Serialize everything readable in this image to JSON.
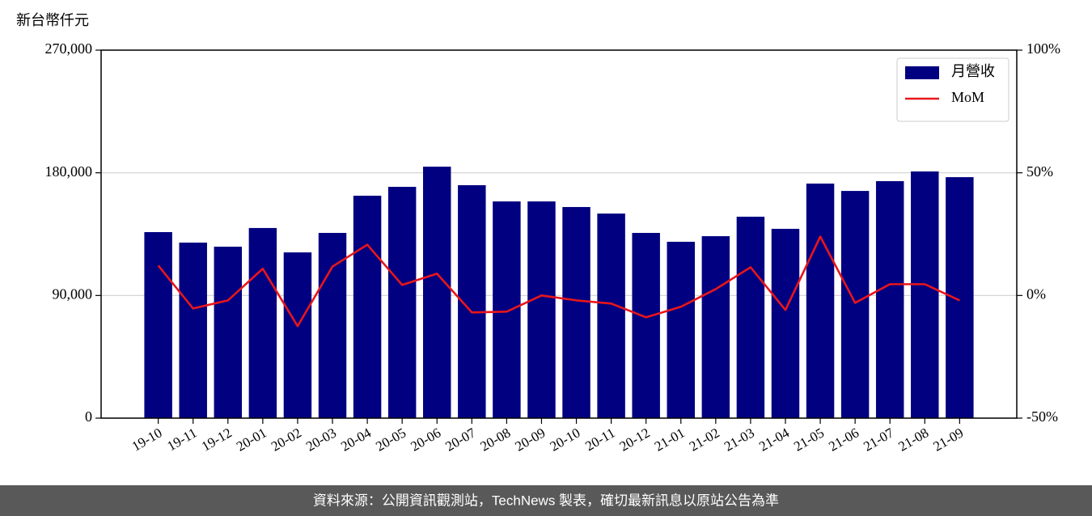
{
  "chart_data": {
    "type": "bar",
    "y_label": "新台幣仟元",
    "categories": [
      "19-10",
      "19-11",
      "19-12",
      "20-01",
      "20-02",
      "20-03",
      "20-04",
      "20-05",
      "20-06",
      "20-07",
      "20-08",
      "20-09",
      "20-10",
      "20-11",
      "20-12",
      "21-01",
      "21-02",
      "21-03",
      "21-04",
      "21-05",
      "21-06",
      "21-07",
      "21-08",
      "21-09"
    ],
    "series": [
      {
        "name": "月營收",
        "type": "bar",
        "color": "#000080",
        "values": [
          136500,
          128800,
          125800,
          139500,
          121600,
          135900,
          163200,
          169700,
          184500,
          170900,
          159000,
          159000,
          154900,
          150100,
          135900,
          129400,
          133500,
          147800,
          138900,
          172100,
          166700,
          173900,
          181000,
          176800
        ]
      },
      {
        "name": "MoM",
        "type": "line",
        "axis": "y2",
        "color": "#e8161b",
        "values": [
          12.2,
          -5.3,
          -2.0,
          10.9,
          -12.5,
          11.8,
          20.7,
          4.3,
          8.9,
          -6.9,
          -6.6,
          0,
          -2.0,
          -3.3,
          -8.9,
          -4.6,
          2.6,
          11.5,
          -5.9,
          24.0,
          -3.0,
          4.6,
          4.6,
          -2.0
        ]
      }
    ],
    "ylim": [
      0,
      270000
    ],
    "yticks": [
      0,
      {
        "value": 90000,
        "label": "90,000"
      },
      {
        "value": 180000,
        "label": "180,000"
      },
      {
        "value": 270000,
        "label": "270,000"
      }
    ],
    "y2lim": [
      -50,
      100
    ],
    "y2ticks": [
      {
        "value": -50,
        "label": "-50%"
      },
      {
        "value": 0,
        "label": "0%"
      },
      {
        "value": 50,
        "label": "50%"
      },
      {
        "value": 100,
        "label": "100%"
      }
    ],
    "grid": true,
    "legend": "upper right"
  },
  "footer": {
    "text": "資料來源：公開資訊觀測站，TechNews 製表，確切最新訊息以原站公告為準"
  }
}
